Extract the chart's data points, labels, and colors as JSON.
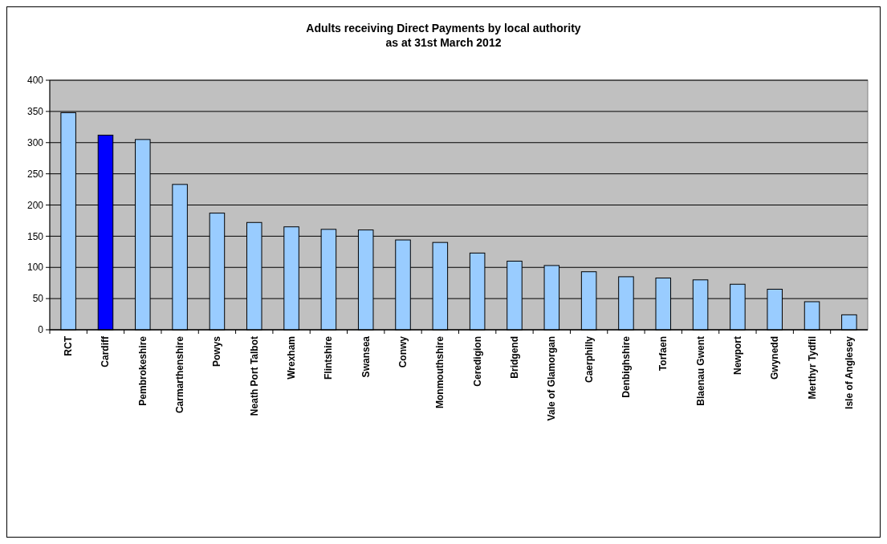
{
  "chart_data": {
    "type": "bar",
    "title": "Adults receiving Direct Payments by local authority\nas at 31st March 2012",
    "categories": [
      "RCT",
      "Cardiff",
      "Pembrokeshire",
      "Carmarthenshire",
      "Powys",
      "Neath Port Talbot",
      "Wrexham",
      "Flintshire",
      "Swansea",
      "Conwy",
      "Monmouthshire",
      "Ceredigion",
      "Bridgend",
      "Vale of Glamorgan",
      "Caerphilly",
      "Denbighshire",
      "Torfaen",
      "Blaenau Gwent",
      "Newport",
      "Gwynedd",
      "Merthyr Tydfil",
      "Isle of Anglesey"
    ],
    "values": [
      348,
      312,
      305,
      233,
      187,
      172,
      165,
      161,
      160,
      144,
      140,
      123,
      110,
      103,
      93,
      85,
      83,
      80,
      73,
      65,
      45,
      24
    ],
    "colors": [
      "#99ccff",
      "#0000ff",
      "#99ccff",
      "#99ccff",
      "#99ccff",
      "#99ccff",
      "#99ccff",
      "#99ccff",
      "#99ccff",
      "#99ccff",
      "#99ccff",
      "#99ccff",
      "#99ccff",
      "#99ccff",
      "#99ccff",
      "#99ccff",
      "#99ccff",
      "#99ccff",
      "#99ccff",
      "#99ccff",
      "#99ccff",
      "#99ccff"
    ],
    "ylim": [
      0,
      400
    ],
    "yticks": [
      0,
      50,
      100,
      150,
      200,
      250,
      300,
      350,
      400
    ],
    "grid": "y"
  }
}
